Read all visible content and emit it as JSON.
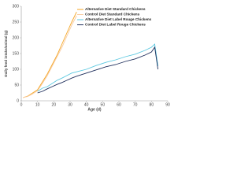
{
  "chart_data": {
    "type": "line",
    "x_label": "Age (d)",
    "y_label": "Daily feed intake/animal (g)",
    "x": [
      1,
      4,
      7,
      10,
      13,
      16,
      19,
      22,
      25,
      28,
      31,
      34,
      40,
      46,
      52,
      58,
      64,
      70,
      76,
      80,
      82,
      84
    ],
    "series": [
      {
        "name": "Alternative Diet Standard Chickens",
        "color": "#f5a623",
        "values": [
          10,
          15,
          25,
          35,
          60,
          85,
          115,
          145,
          180,
          215,
          250,
          282,
          null,
          null,
          null,
          null,
          null,
          null,
          null,
          null,
          null,
          null
        ]
      },
      {
        "name": "Control Diet Standard Chickens",
        "color": "#f8cba0",
        "values": [
          10,
          14,
          22,
          32,
          55,
          80,
          110,
          140,
          170,
          205,
          240,
          270,
          null,
          null,
          null,
          null,
          null,
          null,
          null,
          null,
          null,
          null
        ]
      },
      {
        "name": "Alternative Diet Label Rouge Chickens",
        "color": "#5bc8e0",
        "values": [
          null,
          null,
          null,
          30,
          40,
          45,
          55,
          65,
          72,
          80,
          88,
          92,
          100,
          112,
          122,
          130,
          140,
          148,
          160,
          170,
          180,
          110
        ]
      },
      {
        "name": "Control Diet Label Rouge Chickens",
        "color": "#1f2f5c",
        "values": [
          null,
          null,
          null,
          25,
          30,
          38,
          45,
          52,
          58,
          65,
          72,
          78,
          88,
          98,
          108,
          115,
          125,
          133,
          145,
          155,
          170,
          100
        ]
      }
    ],
    "xlim": [
      0,
      90
    ],
    "xticks": [
      0,
      10,
      20,
      30,
      40,
      50,
      60,
      70,
      80,
      90
    ],
    "ylim": [
      0,
      300
    ],
    "yticks": [
      0,
      50,
      100,
      150,
      200,
      250,
      300
    ],
    "legend": "top-center"
  }
}
